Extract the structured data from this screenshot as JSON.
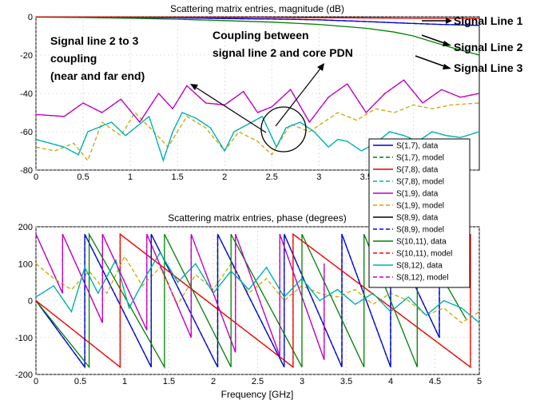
{
  "chart_data": [
    {
      "type": "line",
      "title": "Scattering matrix entries, magnitude (dB)",
      "xlabel": "",
      "ylabel": "",
      "xlim": [
        0,
        4.7
      ],
      "ylim": [
        -80,
        0
      ],
      "xticks": [
        "0",
        "0.5",
        "1",
        "1.5",
        "2",
        "2.5",
        "3",
        "3.5",
        "4"
      ],
      "yticks": [
        "0",
        "-20",
        "-40",
        "-60",
        "-80"
      ],
      "grid": true,
      "series": [
        {
          "name": "S(1,7), data",
          "color": "#0000c8",
          "dash": "solid",
          "x": [
            0,
            0.5,
            1,
            1.5,
            2,
            2.5,
            3,
            3.5,
            4,
            4.3,
            4.7
          ],
          "y": [
            -0.1,
            -0.2,
            -0.4,
            -0.6,
            -0.9,
            -1.2,
            -1.6,
            -2.5,
            -3.5,
            -4,
            -4.5
          ]
        },
        {
          "name": "S(1,7), model",
          "color": "#008000",
          "dash": "dashed",
          "x": [
            0,
            0.5,
            1,
            1.5,
            2,
            2.5,
            3,
            3.5,
            4,
            4.3,
            4.7
          ],
          "y": [
            -0.1,
            -0.2,
            -0.4,
            -0.6,
            -0.9,
            -1.2,
            -1.6,
            -2.5,
            -3.5,
            -4,
            -4.5
          ]
        },
        {
          "name": "S(7,8), data",
          "color": "#e00000",
          "dash": "solid",
          "x": [
            0,
            1,
            2,
            3,
            4,
            4.7
          ],
          "y": [
            -0.1,
            -0.2,
            -0.3,
            -0.5,
            -0.7,
            -0.8
          ]
        },
        {
          "name": "S(7,8), model",
          "color": "#00b0b0",
          "dash": "dashed",
          "x": [
            0,
            0.15,
            0.3,
            0.45,
            0.55,
            0.65,
            0.8,
            0.95,
            1.05,
            1.2,
            1.35,
            1.45,
            1.55,
            1.7,
            1.85,
            2,
            2.1,
            2.25,
            2.4,
            2.55,
            2.65,
            2.8,
            2.95,
            3.1,
            3.2,
            3.3,
            3.45,
            3.6,
            3.75,
            3.9,
            4.05,
            4.2,
            4.35,
            4.5,
            4.7
          ],
          "y": [
            -64,
            -66,
            -68,
            -72,
            -60,
            -58,
            -55,
            -62,
            -58,
            -52,
            -75,
            -60,
            -50,
            -53,
            -58,
            -70,
            -60,
            -56,
            -52,
            -68,
            -58,
            -55,
            -60,
            -68,
            -64,
            -65,
            -70,
            -66,
            -60,
            -62,
            -65,
            -60,
            -62,
            -63,
            -60
          ]
        },
        {
          "name": "S(1,9), data",
          "color": "#c000c0",
          "dash": "solid",
          "x": [
            0,
            0.3,
            0.5,
            0.7,
            0.9,
            1.1,
            1.3,
            1.45,
            1.6,
            1.8,
            2,
            2.2,
            2.35,
            2.5,
            2.7,
            2.9,
            3.1,
            3.3,
            3.5,
            3.7,
            3.9,
            4.1,
            4.3,
            4.5,
            4.7
          ],
          "y": [
            -51,
            -52,
            -45,
            -50,
            -43,
            -55,
            -40,
            -48,
            -36,
            -45,
            -46,
            -39,
            -50,
            -47,
            -38,
            -55,
            -42,
            -35,
            -50,
            -40,
            -33,
            -45,
            -38,
            -42,
            -40
          ]
        },
        {
          "name": "S(1,9), model",
          "color": "#c8a800",
          "dash": "dashed",
          "x": [
            0,
            0.2,
            0.4,
            0.55,
            0.7,
            0.9,
            1.05,
            1.25,
            1.4,
            1.6,
            1.8,
            2,
            2.15,
            2.35,
            2.5,
            2.7,
            2.9,
            3.05,
            3.2,
            3.4,
            3.6,
            3.8,
            4,
            4.2,
            4.4,
            4.7
          ],
          "y": [
            -68,
            -70,
            -66,
            -75,
            -55,
            -62,
            -50,
            -60,
            -68,
            -52,
            -58,
            -70,
            -60,
            -65,
            -72,
            -56,
            -60,
            -55,
            -50,
            -54,
            -48,
            -50,
            -46,
            -48,
            -46,
            -45
          ]
        },
        {
          "name": "S(8,9), data",
          "color": "#000000",
          "dash": "solid",
          "x": [],
          "y": []
        },
        {
          "name": "S(8,9), model",
          "color": "#0000ff",
          "dash": "dashed",
          "x": [
            0,
            0.5,
            1,
            1.5,
            2,
            2.5,
            3,
            3.5,
            4,
            4.3,
            4.7
          ],
          "y": [
            -0.1,
            -0.2,
            -0.4,
            -0.6,
            -0.9,
            -1.2,
            -1.6,
            -2.5,
            -3.5,
            -4,
            -4.5
          ]
        },
        {
          "name": "S(10,11), data",
          "color": "#008000",
          "dash": "solid",
          "x": [
            0,
            0.5,
            1,
            1.5,
            2,
            2.5,
            3,
            3.5,
            3.8,
            4,
            4.2,
            4.4,
            4.7
          ],
          "y": [
            -0.2,
            -0.4,
            -0.8,
            -1.3,
            -2,
            -2.8,
            -4,
            -6,
            -8,
            -10,
            -13,
            -16,
            -20
          ]
        },
        {
          "name": "S(10,11), model",
          "color": "#ff0000",
          "dash": "dashed",
          "x": [
            0,
            1,
            2,
            3,
            4,
            4.7
          ],
          "y": [
            -0.1,
            -0.2,
            -0.3,
            -0.5,
            -0.7,
            -0.8
          ]
        },
        {
          "name": "S(8,12), data",
          "color": "#00b0b0",
          "dash": "solid",
          "x": [
            0,
            0.15,
            0.3,
            0.45,
            0.55,
            0.65,
            0.8,
            0.95,
            1.05,
            1.2,
            1.35,
            1.45,
            1.55,
            1.7,
            1.85,
            2,
            2.1,
            2.25,
            2.4,
            2.55,
            2.65,
            2.8,
            2.95,
            3.1,
            3.2,
            3.3,
            3.45,
            3.6,
            3.75,
            3.9,
            4.05,
            4.2,
            4.35,
            4.5,
            4.7
          ],
          "y": [
            -64,
            -66,
            -68,
            -72,
            -60,
            -58,
            -55,
            -62,
            -58,
            -52,
            -75,
            -60,
            -50,
            -53,
            -58,
            -70,
            -60,
            -56,
            -52,
            -68,
            -58,
            -55,
            -60,
            -68,
            -64,
            -65,
            -70,
            -66,
            -60,
            -62,
            -65,
            -60,
            -62,
            -63,
            -60
          ]
        },
        {
          "name": "S(8,12), model",
          "color": "#c000c0",
          "dash": "dashed",
          "x": [
            0,
            0.3,
            0.5,
            0.7,
            0.9,
            1.1,
            1.3,
            1.45,
            1.6,
            1.8,
            2,
            2.2,
            2.35,
            2.5,
            2.7,
            2.9,
            3.1,
            3.3,
            3.5,
            3.7,
            3.9,
            4.1,
            4.3,
            4.5,
            4.7
          ],
          "y": [
            -51,
            -52,
            -45,
            -50,
            -43,
            -55,
            -40,
            -48,
            -36,
            -45,
            -46,
            -39,
            -50,
            -47,
            -38,
            -55,
            -42,
            -35,
            -50,
            -40,
            -33,
            -45,
            -38,
            -42,
            -40
          ]
        }
      ]
    },
    {
      "type": "line",
      "title": "Scattering matrix entries, phase (degrees)",
      "xlabel": "Frequency [GHz]",
      "ylabel": "",
      "xlim": [
        0,
        5
      ],
      "ylim": [
        -200,
        200
      ],
      "xticks": [
        "0",
        "0.5",
        "1",
        "1.5",
        "2",
        "2.5",
        "3",
        "3.5",
        "4",
        "4.5",
        "5"
      ],
      "yticks": [
        "200",
        "100",
        "0",
        "-100",
        "-200"
      ],
      "grid": true,
      "series": [
        {
          "name": "S(1,7), data",
          "color": "#0000c8",
          "dash": "solid",
          "x": [
            0,
            0.55,
            0.55,
            1.3,
            1.3,
            2.05,
            2.05,
            2.8,
            2.8,
            3.45,
            3.45,
            4.0,
            4.0,
            4.55,
            4.55,
            4.85
          ],
          "y": [
            0,
            -180,
            180,
            -180,
            180,
            -180,
            180,
            -180,
            180,
            -180,
            180,
            -180,
            180,
            -100,
            180,
            120
          ]
        },
        {
          "name": "S(1,7), model",
          "color": "#008000",
          "dash": "dashed",
          "x": [
            0,
            0.55,
            0.55,
            1.3,
            1.3,
            2.05,
            2.05,
            2.8,
            2.8,
            3.45,
            3.45,
            4.0,
            4.0,
            4.55,
            4.55,
            4.85
          ],
          "y": [
            0,
            -180,
            180,
            -180,
            180,
            -180,
            180,
            -180,
            180,
            -180,
            180,
            -180,
            180,
            -100,
            180,
            120
          ]
        },
        {
          "name": "S(7,8), data",
          "color": "#e00000",
          "dash": "solid",
          "x": [
            0,
            0.95,
            0.95,
            2.9,
            2.9,
            4.9,
            4.9
          ],
          "y": [
            0,
            -180,
            180,
            -180,
            180,
            -180,
            180
          ]
        },
        {
          "name": "S(7,8), model",
          "color": "#00b0b0",
          "dash": "dashed",
          "x": [
            0,
            0.2,
            0.4,
            0.55,
            0.7,
            0.9,
            1.05,
            1.25,
            1.4,
            1.6,
            1.8,
            2,
            2.2,
            2.4,
            2.6,
            2.8,
            3,
            3.2,
            3.4,
            3.6,
            3.8,
            4,
            4.2,
            4.4,
            4.6,
            4.8,
            5
          ],
          "y": [
            10,
            40,
            -30,
            90,
            20,
            110,
            -20,
            70,
            130,
            50,
            100,
            20,
            80,
            30,
            90,
            10,
            60,
            0,
            30,
            -10,
            20,
            -30,
            10,
            -40,
            0,
            -20,
            -60
          ]
        },
        {
          "name": "S(1,9), data",
          "color": "#c000c0",
          "dash": "solid",
          "x": [
            0,
            0.3,
            0.3,
            0.75,
            0.75,
            1.25,
            1.25,
            1.75,
            1.75,
            2.25,
            2.25,
            2.75,
            2.75,
            3.25,
            3.25
          ],
          "y": [
            180,
            20,
            180,
            -60,
            180,
            -80,
            180,
            -100,
            180,
            -140,
            180,
            -150,
            180,
            -160,
            100
          ]
        },
        {
          "name": "S(1,9), model",
          "color": "#c8a800",
          "dash": "dashed",
          "x": [
            0,
            0.2,
            0.4,
            0.6,
            0.8,
            1,
            1.2,
            1.4,
            1.6,
            1.8,
            2,
            2.2,
            2.4,
            2.6,
            2.8,
            3,
            3.2,
            3.4,
            3.6,
            3.8,
            4,
            4.2,
            4.4,
            4.6,
            4.8,
            5
          ],
          "y": [
            100,
            60,
            30,
            80,
            20,
            120,
            40,
            90,
            -10,
            70,
            30,
            100,
            20,
            60,
            0,
            40,
            20,
            10,
            30,
            -10,
            20,
            0,
            -40,
            -20,
            -60,
            -30
          ]
        },
        {
          "name": "S(8,9), data",
          "color": "#000000",
          "dash": "solid",
          "x": [],
          "y": []
        },
        {
          "name": "S(8,9), model",
          "color": "#0000ff",
          "dash": "dashed",
          "x": [
            0,
            0.55,
            0.55,
            1.3,
            1.3,
            2.05,
            2.05,
            2.8,
            2.8,
            3.45,
            3.45,
            4.0,
            4.0,
            4.55,
            4.55,
            4.85
          ],
          "y": [
            0,
            -180,
            180,
            -180,
            180,
            -180,
            180,
            -180,
            180,
            -180,
            180,
            -180,
            180,
            -100,
            180,
            120
          ]
        },
        {
          "name": "S(10,11), data",
          "color": "#008000",
          "dash": "solid",
          "x": [
            0,
            0.6,
            0.6,
            1.45,
            1.45,
            2.2,
            2.2,
            3.0,
            3.0,
            3.7,
            3.7,
            4.3,
            4.3,
            4.85
          ],
          "y": [
            0,
            -180,
            180,
            -180,
            180,
            -180,
            180,
            -180,
            180,
            -180,
            180,
            -180,
            180,
            -50
          ]
        },
        {
          "name": "S(10,11), model",
          "color": "#ff0000",
          "dash": "dashed",
          "x": [
            0,
            0.95,
            0.95,
            2.9,
            2.9,
            4.9,
            4.9
          ],
          "y": [
            0,
            -180,
            180,
            -180,
            180,
            -180,
            180
          ]
        },
        {
          "name": "S(8,12), data",
          "color": "#00b0b0",
          "dash": "solid",
          "x": [
            0,
            0.2,
            0.4,
            0.55,
            0.7,
            0.9,
            1.05,
            1.25,
            1.4,
            1.6,
            1.8,
            2,
            2.2,
            2.4,
            2.6,
            2.8,
            3,
            3.2,
            3.4,
            3.6,
            3.8,
            4,
            4.2,
            4.4,
            4.6,
            4.8,
            5
          ],
          "y": [
            10,
            40,
            -30,
            90,
            20,
            110,
            -20,
            70,
            130,
            50,
            100,
            20,
            80,
            30,
            90,
            10,
            60,
            0,
            30,
            -10,
            20,
            -30,
            10,
            -40,
            0,
            -20,
            -60
          ]
        },
        {
          "name": "S(8,12), model",
          "color": "#c000c0",
          "dash": "dashed",
          "x": [
            0,
            0.3,
            0.3,
            0.75,
            0.75,
            1.25,
            1.25,
            1.75,
            1.75,
            2.25,
            2.25,
            2.75,
            2.75,
            3.25,
            3.25
          ],
          "y": [
            180,
            20,
            180,
            -60,
            180,
            -80,
            180,
            -100,
            180,
            -140,
            180,
            -150,
            180,
            -160,
            100
          ]
        }
      ]
    }
  ],
  "annotations": {
    "signal_line_1": "Signal Line 1",
    "signal_line_2": "Signal Line 2",
    "signal_line_3": "Signal Line 3",
    "coupling_23_line1": "Signal line 2 to 3",
    "coupling_23_line2": "coupling",
    "coupling_23_line3": "(near and far end)",
    "coupling_pdn_line1": "Coupling between",
    "coupling_pdn_line2": "signal line 2 and core PDN"
  },
  "legend_position": "right, overlapping both panels"
}
